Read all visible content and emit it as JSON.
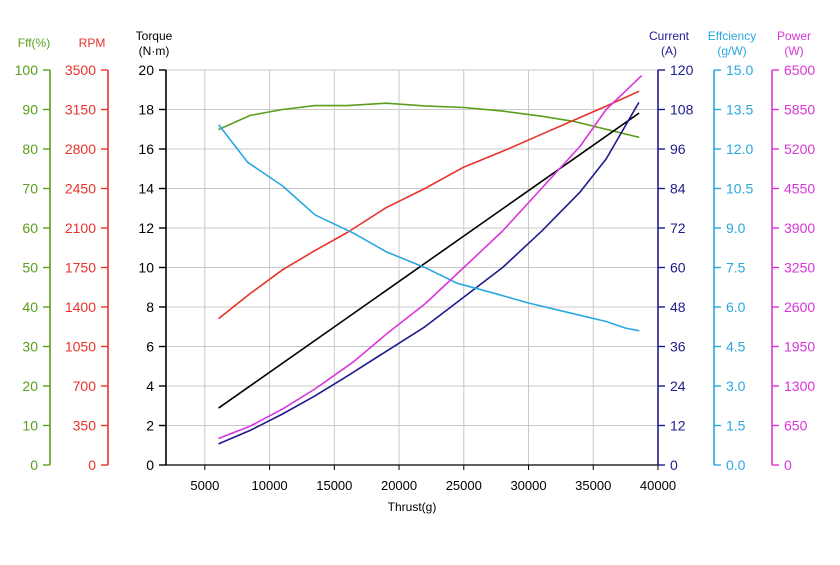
{
  "chart_data": {
    "type": "line",
    "title": "",
    "xlabel": "Thrust(g)",
    "xlim": [
      2000,
      40000
    ],
    "x_ticks": [
      5000,
      10000,
      15000,
      20000,
      25000,
      30000,
      35000,
      40000
    ],
    "grid": true,
    "axes": [
      {
        "id": "eff",
        "label": "Fff(%)",
        "color": "#5a9e1e",
        "side": "left",
        "range": [
          0,
          100
        ],
        "ticks": [
          "0",
          "10",
          "20",
          "30",
          "40",
          "50",
          "60",
          "70",
          "80",
          "90",
          "100"
        ]
      },
      {
        "id": "rpm",
        "label": "RPM",
        "color": "#e8332a",
        "side": "left",
        "range": [
          0,
          3500
        ],
        "ticks": [
          "0",
          "350",
          "700",
          "1050",
          "1400",
          "1750",
          "2100",
          "2450",
          "2800",
          "3150",
          "3500"
        ]
      },
      {
        "id": "torque",
        "label_line1": "Torque",
        "label_line2": "(N·m)",
        "color": "#000000",
        "side": "left",
        "range": [
          0,
          20
        ],
        "ticks": [
          "0",
          "2",
          "4",
          "6",
          "8",
          "10",
          "12",
          "14",
          "16",
          "18",
          "20"
        ]
      },
      {
        "id": "current",
        "label_line1": "Current",
        "label_line2": "(A)",
        "color": "#1c1c8c",
        "side": "right",
        "range": [
          0,
          120
        ],
        "ticks": [
          "0",
          "12",
          "24",
          "36",
          "48",
          "60",
          "72",
          "84",
          "96",
          "108",
          "120"
        ]
      },
      {
        "id": "efficiency",
        "label_line1": "Effciency",
        "label_line2": "(g/W)",
        "color": "#29a8e0",
        "side": "right",
        "range": [
          0,
          15
        ],
        "ticks": [
          "0.0",
          "1.5",
          "3.0",
          "4.5",
          "6.0",
          "7.5",
          "9.0",
          "10.5",
          "12.0",
          "13.5",
          "15.0"
        ]
      },
      {
        "id": "power",
        "label_line1": "Power",
        "label_line2": "(W)",
        "color": "#d936d9",
        "side": "right",
        "range": [
          0,
          6500
        ],
        "ticks": [
          "0",
          "650",
          "1300",
          "1950",
          "2600",
          "3250",
          "3900",
          "4550",
          "5200",
          "5850",
          "6500"
        ]
      }
    ],
    "series": [
      {
        "axis": "eff",
        "color": "#5a9e1e",
        "x": [
          6100,
          8500,
          11000,
          13500,
          16000,
          19000,
          22000,
          25000,
          28000,
          31000,
          33500,
          36000,
          38500
        ],
        "y": [
          85.0,
          88.5,
          90.0,
          91.0,
          91.0,
          91.6,
          90.9,
          90.5,
          89.6,
          88.3,
          87.0,
          85.0,
          83.0
        ]
      },
      {
        "axis": "rpm",
        "color": "#e8332a",
        "x": [
          6100,
          8500,
          11000,
          13500,
          16000,
          19000,
          22000,
          25000,
          28000,
          31000,
          34000,
          36000,
          38500
        ],
        "y": [
          1300,
          1520,
          1730,
          1900,
          2060,
          2280,
          2450,
          2640,
          2780,
          2930,
          3080,
          3180,
          3310
        ]
      },
      {
        "axis": "torque",
        "color": "#000000",
        "x": [
          6100,
          38500
        ],
        "y": [
          2.9,
          17.8
        ]
      },
      {
        "axis": "current",
        "color": "#1c1c8c",
        "x": [
          6100,
          8500,
          11000,
          13500,
          16000,
          19000,
          22000,
          25000,
          28000,
          31000,
          34000,
          36000,
          38500
        ],
        "y": [
          6.5,
          10.5,
          15.5,
          21,
          27,
          34.5,
          42,
          51,
          60,
          71,
          83,
          93,
          110
        ]
      },
      {
        "axis": "efficiency",
        "color": "#29a8e0",
        "x": [
          6100,
          8300,
          11000,
          13500,
          16500,
          19000,
          22000,
          24500,
          27500,
          30000,
          33000,
          36000,
          37500,
          38500
        ],
        "y": [
          12.9,
          11.5,
          10.6,
          9.5,
          8.8,
          8.1,
          7.5,
          6.9,
          6.5,
          6.15,
          5.8,
          5.45,
          5.2,
          5.1
        ]
      },
      {
        "axis": "power",
        "color": "#d936d9",
        "x": [
          6100,
          8500,
          11000,
          13500,
          16500,
          19000,
          22000,
          25000,
          28000,
          31000,
          34000,
          36000,
          38700
        ],
        "y": [
          440,
          640,
          920,
          1250,
          1700,
          2150,
          2650,
          3250,
          3850,
          4550,
          5250,
          5850,
          6400
        ]
      }
    ]
  }
}
